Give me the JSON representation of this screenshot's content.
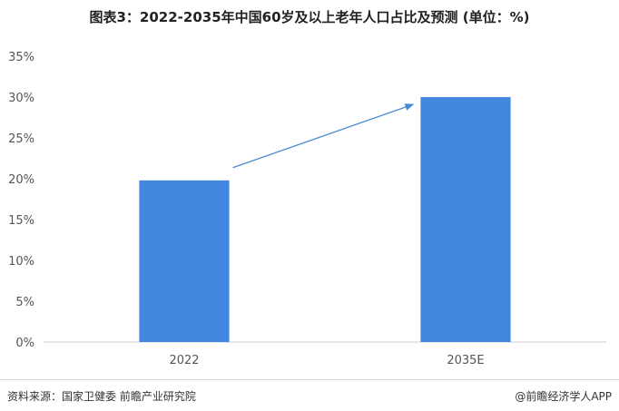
{
  "title": "图表3：2022-2035年中国60岁及以上老年人口占比及预测 (单位：%)",
  "source": "资料来源：国家卫健委 前瞻产业研究院",
  "brand": "@前瞻经济学人APP",
  "colors": {
    "bar": "#4287e0",
    "arrow": "#4a8ad4",
    "axis": "#cccccc"
  },
  "chart_data": {
    "type": "bar",
    "categories": [
      "2022",
      "2035E"
    ],
    "values": [
      19.8,
      30.0
    ],
    "ylim": [
      0,
      35
    ],
    "yticks": [
      "0%",
      "5%",
      "10%",
      "15%",
      "20%",
      "25%",
      "30%",
      "35%"
    ],
    "ytick_values": [
      0,
      5,
      10,
      15,
      20,
      25,
      30,
      35
    ],
    "annotation": "arrow-from-2022-to-2035E",
    "grid": false
  }
}
